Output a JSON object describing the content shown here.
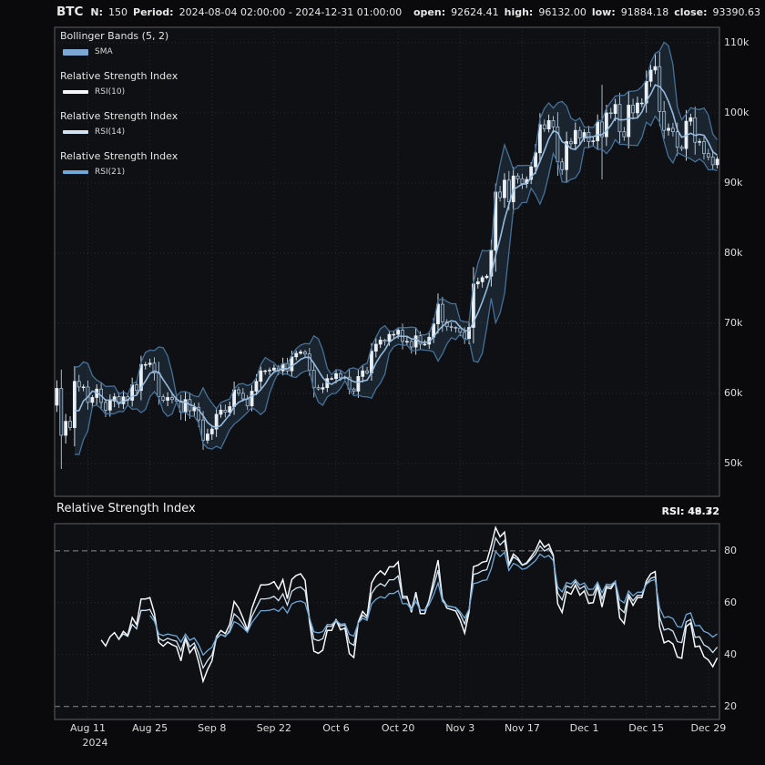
{
  "header": {
    "symbol": "BTC",
    "n_label": "N:",
    "n_value": "150",
    "period_label": "Period:",
    "period_value": "2024-08-04 02:00:00 - 2024-12-31 01:00:00",
    "open_label": "open:",
    "open_value": "92624.41",
    "high_label": "high:",
    "high_value": "96132.00",
    "low_label": "low:",
    "low_value": "91884.18",
    "close_label": "close:",
    "close_value": "93390.63"
  },
  "legend": {
    "items": [
      {
        "title": "Bollinger Bands (5, 2)",
        "swatch_color": "#7ea8d4",
        "sub_label": "SMA"
      },
      {
        "title": "Relative Strength Index",
        "swatch_color": "#f5f8fa",
        "sub_label": "RSI(10)"
      },
      {
        "title": "Relative Strength Index",
        "swatch_color": "#cfe3f2",
        "sub_label": "RSI(14)"
      },
      {
        "title": "Relative Strength Index",
        "swatch_color": "#6fa8d8",
        "sub_label": "RSI(21)"
      }
    ]
  },
  "rsi_panel": {
    "title": "Relative Strength Index",
    "value_labels": [
      "RSI: 49.72",
      "RSI: 48.32"
    ]
  },
  "theme": {
    "background": "#0a0a0c",
    "panel_bg": "#0e1013",
    "panel_border": "#5f5f5f",
    "grid": "#2c2c30",
    "ob_os_line": "#8a8a8a",
    "candle_up": "#e8eff6",
    "candle_down": "#223546",
    "candle_down_stroke": "#b9cbdc",
    "bb_line": "#49759e",
    "bb_fill": "rgba(90,140,190,0.16)",
    "sma_line": "#9cc2e6"
  },
  "chart_data": [
    {
      "type": "candlestick",
      "title": "BTC",
      "x_start_date": "2024-08-04",
      "n_bars": 150,
      "unit": "thousand USD",
      "ylim": [
        45.3,
        112.2
      ],
      "y_ticks": [
        {
          "v": 50,
          "label": "50k"
        },
        {
          "v": 60,
          "label": "60k"
        },
        {
          "v": 70,
          "label": "70k"
        },
        {
          "v": 80,
          "label": "80k"
        },
        {
          "v": 90,
          "label": "90k"
        },
        {
          "v": 100,
          "label": "100k"
        },
        {
          "v": 110,
          "label": "110k"
        }
      ],
      "x_ticks": [
        {
          "i": 7,
          "label": "Aug 11",
          "sub": "2024"
        },
        {
          "i": 21,
          "label": "Aug 25"
        },
        {
          "i": 35,
          "label": "Sep 8"
        },
        {
          "i": 49,
          "label": "Sep 22"
        },
        {
          "i": 63,
          "label": "Oct 6"
        },
        {
          "i": 77,
          "label": "Oct 20"
        },
        {
          "i": 91,
          "label": "Nov 3"
        },
        {
          "i": 105,
          "label": "Nov 17"
        },
        {
          "i": 119,
          "label": "Dec 1"
        },
        {
          "i": 133,
          "label": "Dec 15"
        },
        {
          "i": 147,
          "label": "Dec 29"
        }
      ],
      "first_open": 58.3,
      "close": [
        60.7,
        54.0,
        56.0,
        55.1,
        61.7,
        60.9,
        60.9,
        58.7,
        59.4,
        60.6,
        58.7,
        57.6,
        58.9,
        59.5,
        58.5,
        59.5,
        59.0,
        61.2,
        60.4,
        64.1,
        64.1,
        64.3,
        62.9,
        59.5,
        59.0,
        59.4,
        59.1,
        58.9,
        57.3,
        59.1,
        57.5,
        58.0,
        56.2,
        53.3,
        54.2,
        54.9,
        57.0,
        57.6,
        57.3,
        58.1,
        60.5,
        60.0,
        59.2,
        58.2,
        60.3,
        61.7,
        63.2,
        63.2,
        63.3,
        63.6,
        63.2,
        64.2,
        63.2,
        65.2,
        65.7,
        65.9,
        65.6,
        63.3,
        60.8,
        60.6,
        60.8,
        62.1,
        62.1,
        62.8,
        62.2,
        62.3,
        60.6,
        60.3,
        62.4,
        63.2,
        62.9,
        66.0,
        67.0,
        67.6,
        67.4,
        68.4,
        68.4,
        69.0,
        67.4,
        67.4,
        66.6,
        68.2,
        67.0,
        67.0,
        68.0,
        69.9,
        72.7,
        70.2,
        69.5,
        69.4,
        69.3,
        68.7,
        67.8,
        69.4,
        75.6,
        75.9,
        76.5,
        76.7,
        80.4,
        88.7,
        87.9,
        90.4,
        87.3,
        91.0,
        90.6,
        89.9,
        90.5,
        92.3,
        94.3,
        98.3,
        97.7,
        98.9,
        98.0,
        93.0,
        91.9,
        95.9,
        95.6,
        97.5,
        96.4,
        97.2,
        95.9,
        96.0,
        98.7,
        96.6,
        100.0,
        99.9,
        101.2,
        97.3,
        96.6,
        101.1,
        100.0,
        101.4,
        101.4,
        104.5,
        106.1,
        106.6,
        100.2,
        97.5,
        97.8,
        97.3,
        95.1,
        94.9,
        98.8,
        99.3,
        95.8,
        95.9,
        94.2,
        93.7,
        92.6,
        93.4
      ],
      "wick_overrides": [
        {
          "i": 1,
          "low": 49.2
        },
        {
          "i": 99,
          "high": 89.9
        },
        {
          "i": 123,
          "high": 104.0,
          "low": 90.5
        },
        {
          "i": 135,
          "high": 108.4
        }
      ],
      "overlays": [
        {
          "name": "Bollinger Bands",
          "window": 5,
          "k": 2
        },
        {
          "name": "SMA",
          "window": 5
        }
      ]
    },
    {
      "type": "line",
      "title": "Relative Strength Index",
      "derived_from": "close prices via Wilder RSI",
      "ylim": [
        15,
        90.5
      ],
      "y_ticks": [
        20,
        40,
        60,
        80
      ],
      "bands": {
        "overbought": 80,
        "oversold": 20
      },
      "series": [
        {
          "name": "RSI(10)",
          "period": 10,
          "color": "#f5f8fa"
        },
        {
          "name": "RSI(14)",
          "period": 14,
          "color": "#cfe3f2"
        },
        {
          "name": "RSI(21)",
          "period": 21,
          "color": "#6fa8d8"
        }
      ]
    }
  ]
}
